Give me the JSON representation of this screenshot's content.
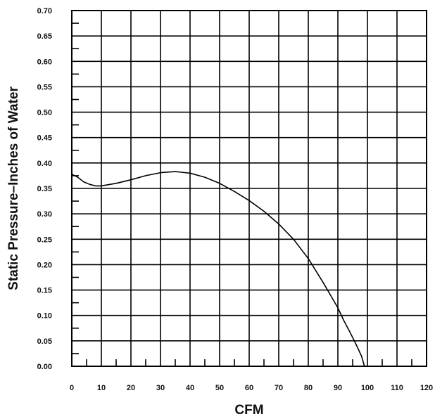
{
  "chart_data": {
    "type": "line",
    "title": "",
    "xlabel": "CFM",
    "ylabel": "Static Pressure–Inches of Water",
    "xlim": [
      0,
      120
    ],
    "ylim": [
      0,
      0.7
    ],
    "x_ticks": [
      "0",
      "10",
      "20",
      "30",
      "40",
      "50",
      "60",
      "70",
      "80",
      "90",
      "100",
      "110",
      "120"
    ],
    "y_ticks": [
      "0.00",
      "0.05",
      "0.10",
      "0.15",
      "0.20",
      "0.25",
      "0.30",
      "0.35",
      "0.40",
      "0.45",
      "0.50",
      "0.55",
      "0.60",
      "0.65",
      "0.70"
    ],
    "grid": true,
    "series": [
      {
        "x": [
          0,
          2,
          4,
          6,
          8,
          10,
          12,
          15,
          20,
          25,
          30,
          35,
          40,
          45,
          50,
          55,
          60,
          65,
          70,
          75,
          80,
          85,
          88,
          90,
          92,
          94,
          96,
          98,
          99
        ],
        "y": [
          0.378,
          0.372,
          0.363,
          0.358,
          0.355,
          0.355,
          0.357,
          0.36,
          0.367,
          0.375,
          0.381,
          0.383,
          0.38,
          0.372,
          0.36,
          0.344,
          0.326,
          0.305,
          0.28,
          0.25,
          0.212,
          0.165,
          0.135,
          0.115,
          0.09,
          0.068,
          0.045,
          0.02,
          0.0
        ]
      }
    ]
  }
}
